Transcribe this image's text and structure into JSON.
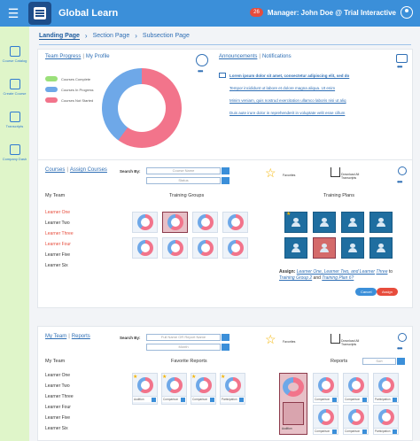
{
  "app": {
    "title": "Global Learn",
    "notifications": "26",
    "user": "Manager: John Doe @ Trial Interactive"
  },
  "sidebar": {
    "items": [
      {
        "label": "Course Catalog",
        "icon": "book-icon"
      },
      {
        "label": "Create Course",
        "icon": "folder-icon"
      },
      {
        "label": "Transcripts",
        "icon": "checklist-icon"
      },
      {
        "label": "Company Dash",
        "icon": "chart-icon"
      }
    ]
  },
  "breadcrumb": [
    "Landing Page",
    "Section Page",
    "Subsection Page"
  ],
  "progress": {
    "tab_active": "Team Progress",
    "tab_other": "My Profile",
    "legend": [
      {
        "label": "Courses Complete",
        "color": "#9be07a"
      },
      {
        "label": "Courses In Progress",
        "color": "#6ea8e8"
      },
      {
        "label": "Courses Not Started",
        "color": "#f2748b"
      }
    ],
    "donut_pct": {
      "complete": 0,
      "in_progress": 40,
      "not_started": 60
    }
  },
  "announcements": {
    "tab_active": "Announcements",
    "tab_other": "Notifications",
    "items": [
      "Lorem ipsum dolor sit amet, consectetur adipiscing elit, sed do",
      "Tempor incididunt ut labore et dolore magna aliqua. Ut enim",
      "Minim veniam, quis nostrud exercitation ullamco laboris nisi ut aliq",
      "Duis aute irure dolor in reprehenderit in voluptate velit esse cillum"
    ]
  },
  "courses": {
    "tab_active": "Courses",
    "tab_other": "Assign Courses",
    "search_by": "Search By:",
    "search_placeholder": "Course Name",
    "status_value": "Status",
    "favorites": "Favorites",
    "download": "Download All Transcripts",
    "team_title": "My Team",
    "groups_title": "Training Groups",
    "plans_title": "Training Plans",
    "team": [
      {
        "name": "Learner One",
        "highlight": true
      },
      {
        "name": "Learner Two",
        "highlight": false
      },
      {
        "name": "Learner Three",
        "highlight": true
      },
      {
        "name": "Learner Four",
        "highlight": true
      },
      {
        "name": "Learner Five",
        "highlight": false
      },
      {
        "name": "Learner Six",
        "highlight": false
      }
    ],
    "assign_prefix": "Assign:",
    "assign_links_1": "Learner One, Learner Two, and Learner",
    "assign_links_2": "Three",
    "assign_to": "to",
    "assign_group": "Training Group 2",
    "assign_and": "and",
    "assign_plan": "Training Plan 6?",
    "cancel": "Cancel",
    "assign": "Assign"
  },
  "reports": {
    "tab_active": "My Team",
    "tab_other": "Reports",
    "search_by": "Search By:",
    "search_placeholder": "Full Name OR Report Name",
    "month_value": "Month",
    "favorites": "Favorites",
    "download": "Download All Transcripts",
    "team_title": "My Team",
    "fav_title": "Favorite Reports",
    "reports_title": "Reports",
    "sort_value": "Sort",
    "team": [
      "Learner One",
      "Learner Two",
      "Learner Three",
      "Learner Four",
      "Learner Five",
      "Learner Six"
    ],
    "fav_captions": [
      "Audition",
      "Comparison",
      "Comparison",
      "Participation"
    ],
    "report_captions": [
      "Comparison",
      "Comparison",
      "Participation",
      "Comparison",
      "Comparison",
      "Participation"
    ],
    "calendar_caption": "Audition"
  },
  "colors": {
    "accent": "#3b8fd9",
    "sidebar": "#dff5c9",
    "danger": "#e74c3c"
  }
}
